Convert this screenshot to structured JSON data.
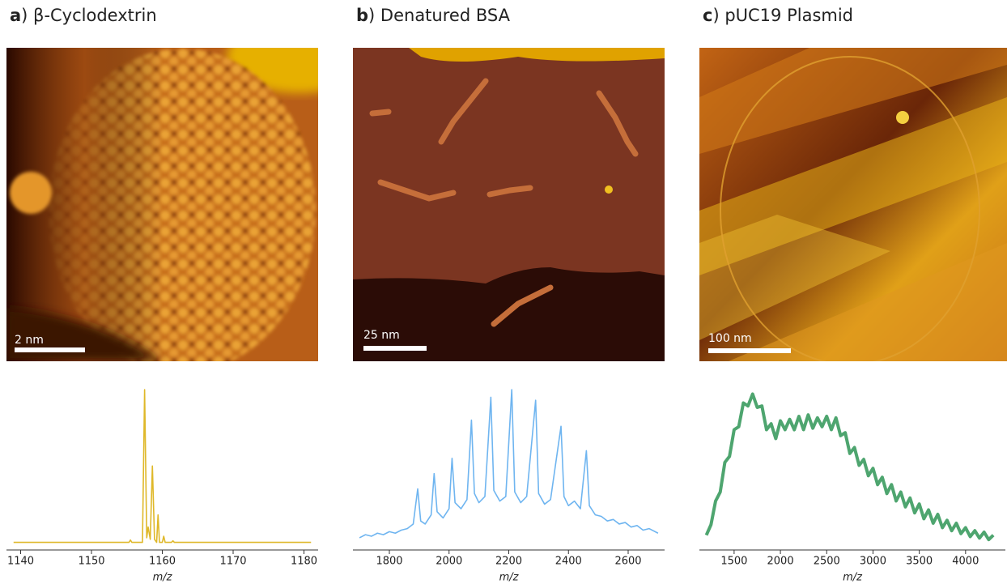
{
  "chart_data": [
    {
      "type": "line",
      "title": "a) β-Cyclodextrin",
      "scale_bar_label": "2 nm",
      "xlabel": "m/z",
      "color": "#dfb829",
      "x": [
        1139,
        1155.3,
        1155.5,
        1155.7,
        1157.2,
        1157.5,
        1157.8,
        1158.0,
        1158.3,
        1158.6,
        1158.9,
        1159.2,
        1159.4,
        1159.6,
        1160.0,
        1160.2,
        1160.4,
        1161.3,
        1161.5,
        1161.7,
        1181
      ],
      "values": [
        0,
        0,
        1.5,
        0,
        0,
        100,
        3,
        10,
        2,
        50,
        2,
        0,
        18,
        0,
        0,
        4,
        0,
        0,
        1,
        0,
        0
      ],
      "xlim": [
        1138,
        1182
      ],
      "ylim": [
        -5,
        100
      ],
      "xticks": [
        1140,
        1150,
        1160,
        1170,
        1180
      ]
    },
    {
      "type": "line",
      "title": "b) Denatured BSA",
      "scale_bar_label": "25 nm",
      "xlabel": "m/z",
      "color": "#6fb5f0",
      "x": [
        1700,
        1720,
        1740,
        1760,
        1780,
        1800,
        1820,
        1840,
        1860,
        1880,
        1895,
        1905,
        1920,
        1940,
        1950,
        1960,
        1980,
        2000,
        2010,
        2020,
        2040,
        2060,
        2075,
        2085,
        2100,
        2120,
        2140,
        2150,
        2170,
        2190,
        2210,
        2220,
        2240,
        2260,
        2290,
        2300,
        2320,
        2340,
        2375,
        2385,
        2400,
        2420,
        2440,
        2460,
        2470,
        2490,
        2510,
        2530,
        2550,
        2570,
        2590,
        2610,
        2630,
        2650,
        2670,
        2700
      ],
      "values": [
        3,
        5,
        4,
        6,
        5,
        7,
        6,
        8,
        9,
        12,
        35,
        14,
        12,
        18,
        45,
        20,
        16,
        22,
        55,
        26,
        22,
        28,
        80,
        32,
        26,
        30,
        95,
        34,
        27,
        30,
        100,
        33,
        26,
        30,
        93,
        32,
        25,
        28,
        76,
        30,
        24,
        27,
        22,
        60,
        24,
        18,
        17,
        14,
        15,
        12,
        13,
        10,
        11,
        8,
        9,
        6
      ],
      "xlim": [
        1678,
        2722
      ],
      "ylim": [
        -5,
        100
      ],
      "xticks": [
        1800,
        2000,
        2200,
        2400,
        2600
      ]
    },
    {
      "type": "line",
      "title": "c) pUC19 Plasmid",
      "scale_bar_label": "100 nm",
      "xlabel": "m/z",
      "color": "#4ea56f",
      "x": [
        1200,
        1250,
        1300,
        1350,
        1400,
        1450,
        1500,
        1550,
        1600,
        1650,
        1700,
        1750,
        1800,
        1850,
        1900,
        1950,
        2000,
        2050,
        2100,
        2150,
        2200,
        2250,
        2300,
        2350,
        2400,
        2450,
        2500,
        2550,
        2600,
        2650,
        2700,
        2750,
        2800,
        2850,
        2900,
        2950,
        3000,
        3050,
        3100,
        3150,
        3200,
        3250,
        3300,
        3350,
        3400,
        3450,
        3500,
        3550,
        3600,
        3650,
        3700,
        3750,
        3800,
        3850,
        3900,
        3950,
        4000,
        4050,
        4100,
        4150,
        4200,
        4250,
        4300
      ],
      "values": [
        5,
        12,
        28,
        34,
        54,
        58,
        76,
        78,
        94,
        92,
        100,
        91,
        92,
        76,
        80,
        70,
        82,
        76,
        83,
        76,
        85,
        76,
        86,
        77,
        84,
        78,
        85,
        76,
        84,
        72,
        74,
        60,
        64,
        52,
        56,
        45,
        50,
        39,
        44,
        33,
        39,
        28,
        34,
        24,
        30,
        20,
        26,
        16,
        22,
        13,
        19,
        10,
        15,
        8,
        13,
        6,
        10,
        4,
        8,
        3,
        7,
        2,
        5
      ],
      "xlim": [
        1125,
        4430
      ],
      "ylim": [
        -5,
        103
      ],
      "xticks": [
        1500,
        2000,
        2500,
        3000,
        3500,
        4000
      ]
    }
  ]
}
